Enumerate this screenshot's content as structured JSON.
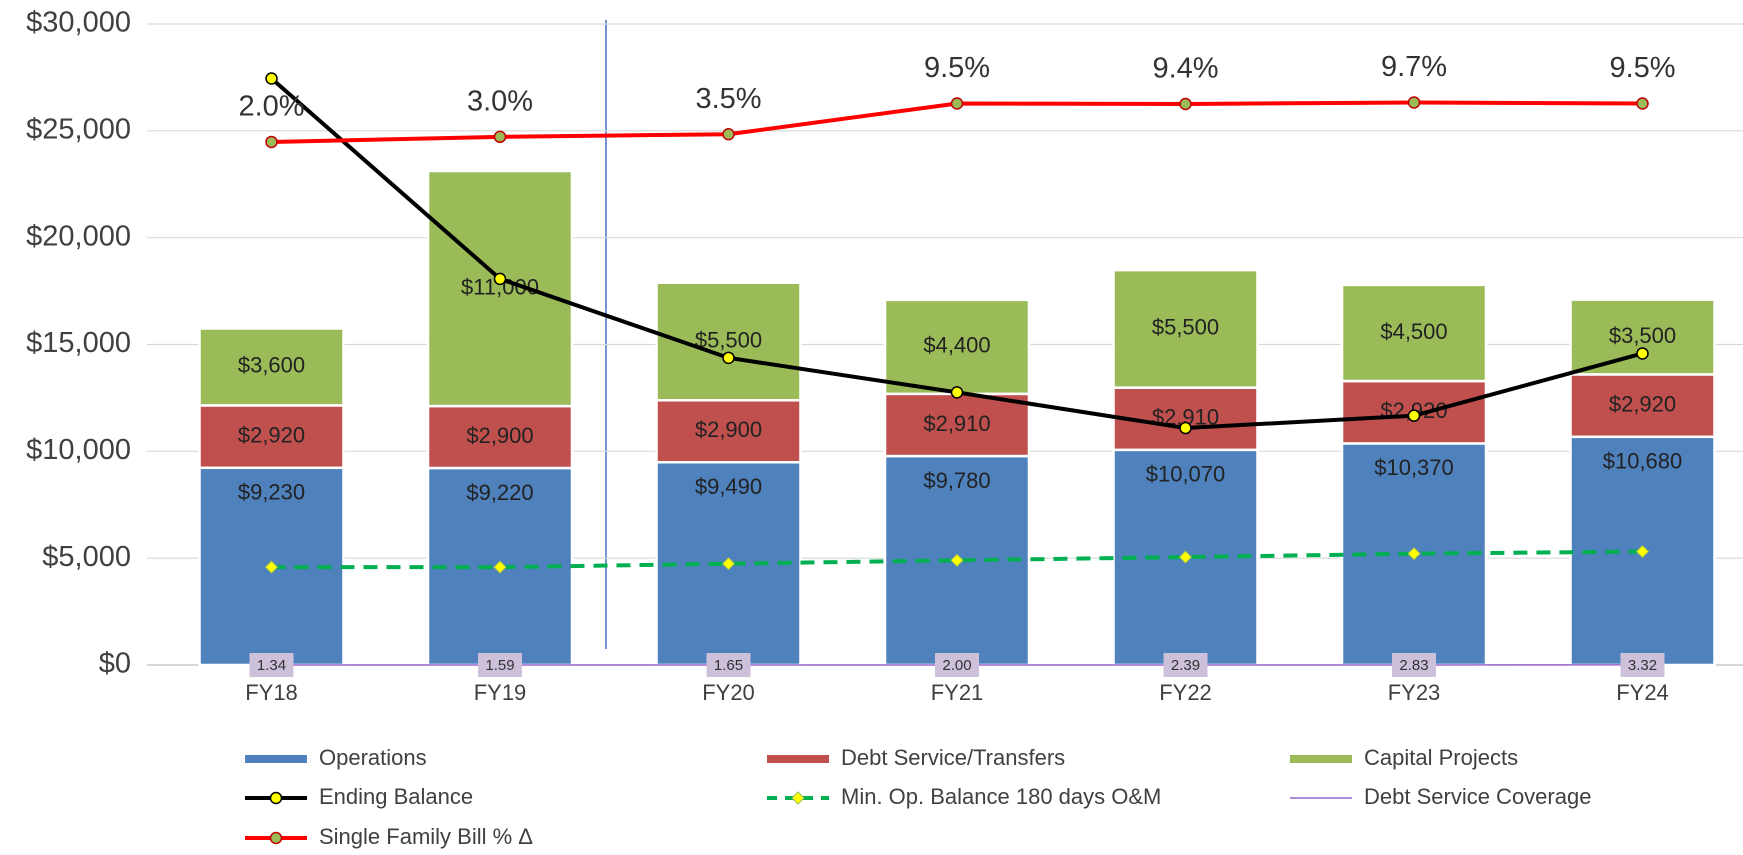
{
  "chart_data": {
    "type": "combo",
    "categories": [
      "FY18",
      "FY19",
      "FY20",
      "FY21",
      "FY22",
      "FY23",
      "FY24"
    ],
    "ylim": [
      0,
      30000
    ],
    "yticks": [
      {
        "value": 0,
        "label": "$0"
      },
      {
        "value": 5000,
        "label": "$5,000"
      },
      {
        "value": 10000,
        "label": "$10,000"
      },
      {
        "value": 15000,
        "label": "$15,000"
      },
      {
        "value": 20000,
        "label": "$20,000"
      },
      {
        "value": 25000,
        "label": "$25,000"
      },
      {
        "value": 30000,
        "label": "$30,000"
      }
    ],
    "y2lim": [
      -100,
      25
    ],
    "grid": true,
    "legend": "bottom",
    "series": [
      {
        "name": "Operations",
        "type": "bar",
        "color": "#4f81bd",
        "label_color": "#000000",
        "values": [
          9230,
          9220,
          9490,
          9780,
          10070,
          10370,
          10680
        ],
        "value_labels": [
          "$9,230",
          "$9,220",
          "$9,490",
          "$9,780",
          "$10,070",
          "$10,370",
          "$10,680"
        ]
      },
      {
        "name": "Debt Service/Transfers",
        "type": "bar",
        "color": "#c0504d",
        "label_color": "#333333",
        "values": [
          2920,
          2900,
          2900,
          2910,
          2910,
          2920,
          2920
        ],
        "value_labels": [
          "$2,920",
          "$2,900",
          "$2,900",
          "$2,910",
          "$2,910",
          "$2,920",
          "$2,920"
        ]
      },
      {
        "name": "Capital Projects",
        "type": "bar",
        "color": "#9bbb59",
        "label_color": "#333333",
        "values": [
          3600,
          11000,
          5500,
          4400,
          5500,
          4500,
          3500
        ],
        "value_labels": [
          "$3,600",
          "$11,000",
          "$5,500",
          "$4,400",
          "$5,500",
          "$4,500",
          "$3,500"
        ]
      },
      {
        "name": "Ending Balance",
        "type": "line",
        "color": "#000000",
        "marker_color": "#ffff00",
        "values": [
          27450,
          18070,
          14375,
          12760,
          11090,
          11670,
          14580
        ]
      },
      {
        "name": "Min. Op. Balance 180 days O&M",
        "type": "line",
        "color": "#00b050",
        "marker_color": "#ffff00",
        "dashed": true,
        "marker": "diamond",
        "values": [
          4580,
          4580,
          4740,
          4900,
          5050,
          5210,
          5310
        ]
      },
      {
        "name": "Debt Service Coverage",
        "type": "line",
        "color": "#9966cc",
        "thin": true,
        "label_box": "#ccc0da",
        "values": [
          1.34,
          1.59,
          1.65,
          2.0,
          2.39,
          2.83,
          3.32
        ],
        "value_labels": [
          "1.34",
          "1.59",
          "1.65",
          "2.00",
          "2.39",
          "2.83",
          "3.32"
        ]
      },
      {
        "name": "Single Family Bill % Δ",
        "type": "line",
        "axis": "y2",
        "color": "#ff0000",
        "marker_color": "#9bbb59",
        "values": [
          2.0,
          3.0,
          3.5,
          9.5,
          9.4,
          9.7,
          9.5
        ],
        "value_labels": [
          "2.0%",
          "3.0%",
          "3.5%",
          "9.5%",
          "9.4%",
          "9.7%",
          "9.5%"
        ]
      }
    ]
  }
}
